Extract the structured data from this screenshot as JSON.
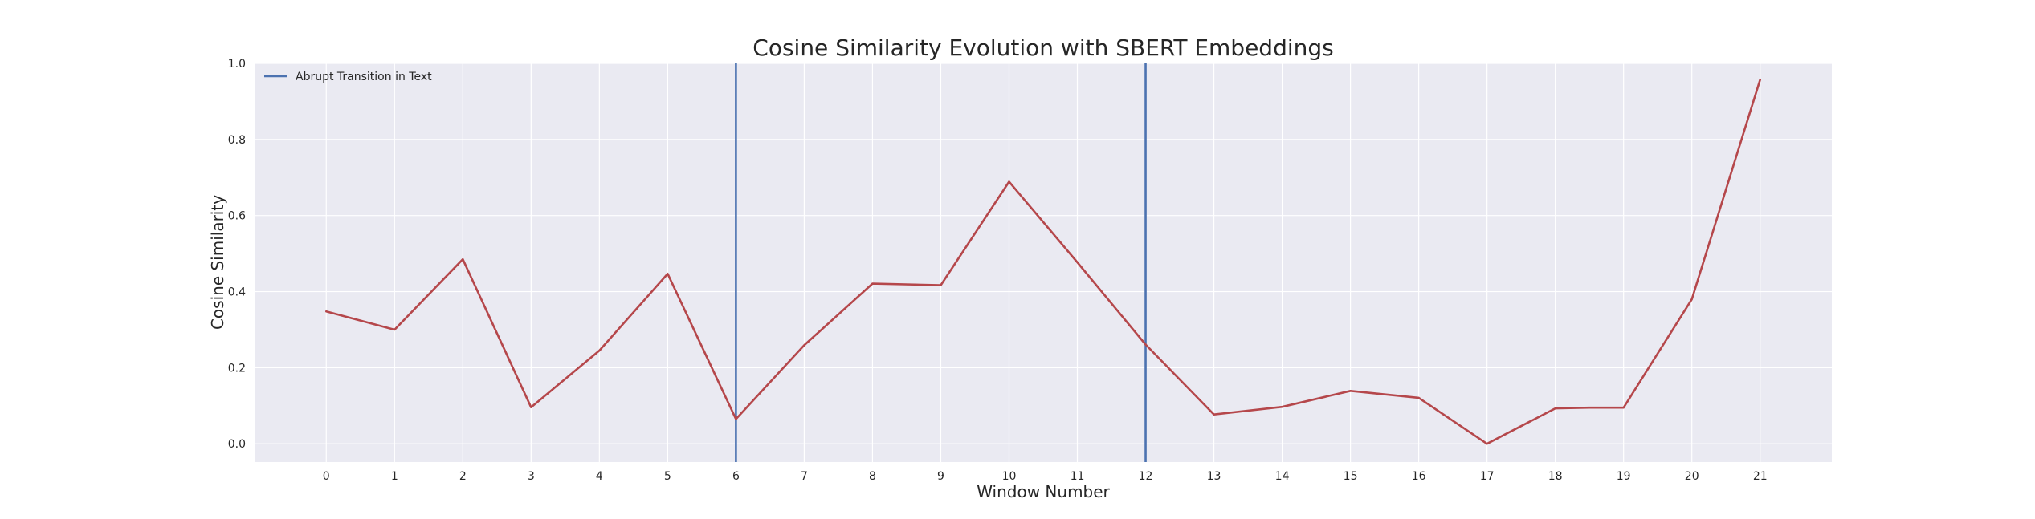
{
  "chart_data": {
    "type": "line",
    "title": "Cosine Similarity Evolution with SBERT Embeddings",
    "xlabel": "Window Number",
    "ylabel": "Cosine Similarity",
    "x": [
      0,
      1,
      2,
      3,
      4,
      5,
      6,
      7,
      8,
      9,
      10,
      11,
      12,
      13,
      14,
      15,
      16,
      17,
      18,
      19,
      20,
      21
    ],
    "xlim": [
      -1.05,
      22.05
    ],
    "ylim": [
      -0.048,
      1.0
    ],
    "yticks": [
      0.0,
      0.2,
      0.4,
      0.6,
      0.8,
      1.0
    ],
    "ytick_labels": [
      "0.0",
      "0.2",
      "0.4",
      "0.6",
      "0.8",
      "1.0"
    ],
    "xtick_labels": [
      "0",
      "1",
      "2",
      "3",
      "4",
      "5",
      "6",
      "7",
      "8",
      "9",
      "10",
      "11",
      "12",
      "13",
      "14",
      "15",
      "16",
      "17",
      "18",
      "19",
      "20",
      "21"
    ],
    "grid": true,
    "series": [
      {
        "values": [
          0.348,
          0.3,
          0.485,
          0.096,
          0.245,
          0.447,
          0.065,
          0.259,
          0.421,
          0.417,
          0.689,
          0.477,
          0.261,
          0.077,
          0.097,
          0.139,
          0.121,
          0.0,
          0.093,
          0.095,
          0.095,
          0.38,
          0.957
        ],
        "x_values": [
          0,
          1,
          2,
          3,
          4,
          5,
          6,
          7,
          8,
          9,
          10,
          11,
          12,
          13,
          14,
          15,
          16,
          17,
          18,
          18.5,
          19,
          20,
          21
        ],
        "color": "#b5474b"
      }
    ],
    "vlines": [
      {
        "x": 6,
        "color": "#4c72b0"
      },
      {
        "x": 12,
        "color": "#4c72b0"
      }
    ],
    "legend": {
      "placement": "top-left",
      "entries": [
        {
          "label": "Abrupt Transition in Text",
          "color": "#4c72b0"
        }
      ]
    },
    "colors": {
      "plot_background": "#eaeaf2",
      "grid": "#ffffff",
      "series": "#b5474b",
      "vline": "#4c72b0"
    }
  }
}
